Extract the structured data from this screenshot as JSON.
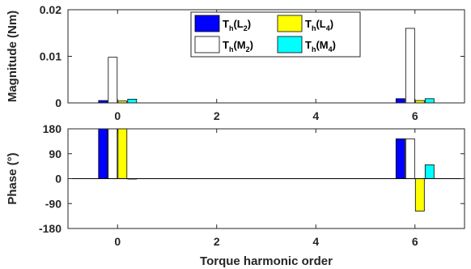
{
  "chart_data": [
    {
      "type": "bar",
      "ylabel": "Magnitude (Nm)",
      "xlabel": "",
      "xlim": [
        -1,
        7
      ],
      "ylim": [
        0,
        0.02
      ],
      "yticks": [
        0,
        0.01,
        0.02
      ],
      "ytick_labels": [
        "0",
        "0.01",
        "0.02"
      ],
      "xticks": [
        0,
        2,
        4,
        6
      ],
      "xtick_labels": [
        "0",
        "2",
        "4",
        "6"
      ],
      "categories": [
        0,
        6
      ],
      "grid": false,
      "legend": {
        "placement": "top-center",
        "entries": [
          {
            "main": "T",
            "sub": "h",
            "open": "(",
            "base": "L",
            "num": "2",
            "close": ")",
            "color": "#0000ff"
          },
          {
            "main": "T",
            "sub": "h",
            "open": "(",
            "base": "L",
            "num": "4",
            "close": ")",
            "color": "#ffff00"
          },
          {
            "main": "T",
            "sub": "h",
            "open": "(",
            "base": "M",
            "num": "2",
            "close": ")",
            "color": "#ffffff"
          },
          {
            "main": "T",
            "sub": "h",
            "open": "(",
            "base": "M",
            "num": "4",
            "close": ")",
            "color": "#00ffff"
          }
        ]
      },
      "series": [
        {
          "name": "Th(L2)",
          "color": "#0000ff",
          "values": [
            0.0005,
            0.0009
          ]
        },
        {
          "name": "Th(M2)",
          "color": "#ffffff",
          "values": [
            0.0098,
            0.016
          ]
        },
        {
          "name": "Th(L4)",
          "color": "#ffff00",
          "values": [
            0.0004,
            0.0005
          ]
        },
        {
          "name": "Th(M4)",
          "color": "#00ffff",
          "values": [
            0.0008,
            0.0009
          ]
        }
      ]
    },
    {
      "type": "bar",
      "ylabel": "Phase (°)",
      "xlabel": "Torque harmonic order",
      "xlim": [
        -1,
        7
      ],
      "ylim": [
        -180,
        180
      ],
      "yticks": [
        -180,
        -90,
        0,
        90,
        180
      ],
      "ytick_labels": [
        "-180",
        "-90",
        "0",
        "90",
        "180"
      ],
      "xticks": [
        0,
        2,
        4,
        6
      ],
      "xtick_labels": [
        "0",
        "2",
        "4",
        "6"
      ],
      "categories": [
        0,
        6
      ],
      "grid": false,
      "series": [
        {
          "name": "Th(L2)",
          "color": "#0000ff",
          "values": [
            180,
            144
          ]
        },
        {
          "name": "Th(M2)",
          "color": "#ffffff",
          "values": [
            180,
            144
          ]
        },
        {
          "name": "Th(L4)",
          "color": "#ffff00",
          "values": [
            180,
            -117
          ]
        },
        {
          "name": "Th(M4)",
          "color": "#00ffff",
          "values": [
            0,
            50
          ]
        }
      ]
    }
  ]
}
